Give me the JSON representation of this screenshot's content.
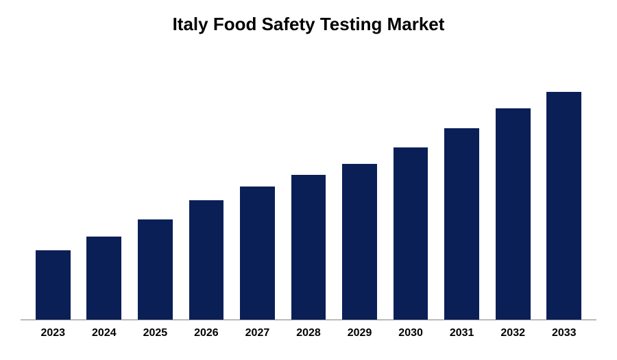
{
  "chart": {
    "type": "bar",
    "title": "Italy Food Safety Testing Market",
    "title_fontsize": 26,
    "title_fontweight": 700,
    "title_color": "#000000",
    "label_fontsize": 16,
    "label_fontweight": 700,
    "label_color": "#000000",
    "categories": [
      "2023",
      "2024",
      "2025",
      "2026",
      "2027",
      "2028",
      "2029",
      "2030",
      "2031",
      "2032",
      "2033"
    ],
    "values": [
      25,
      30,
      36,
      43,
      48,
      52,
      56,
      62,
      69,
      76,
      82
    ],
    "ylim": [
      0,
      100
    ],
    "bar_color": "#0b1f57",
    "background_color": "#ffffff",
    "axis_line_color": "#808080",
    "bar_width": 0.68
  }
}
